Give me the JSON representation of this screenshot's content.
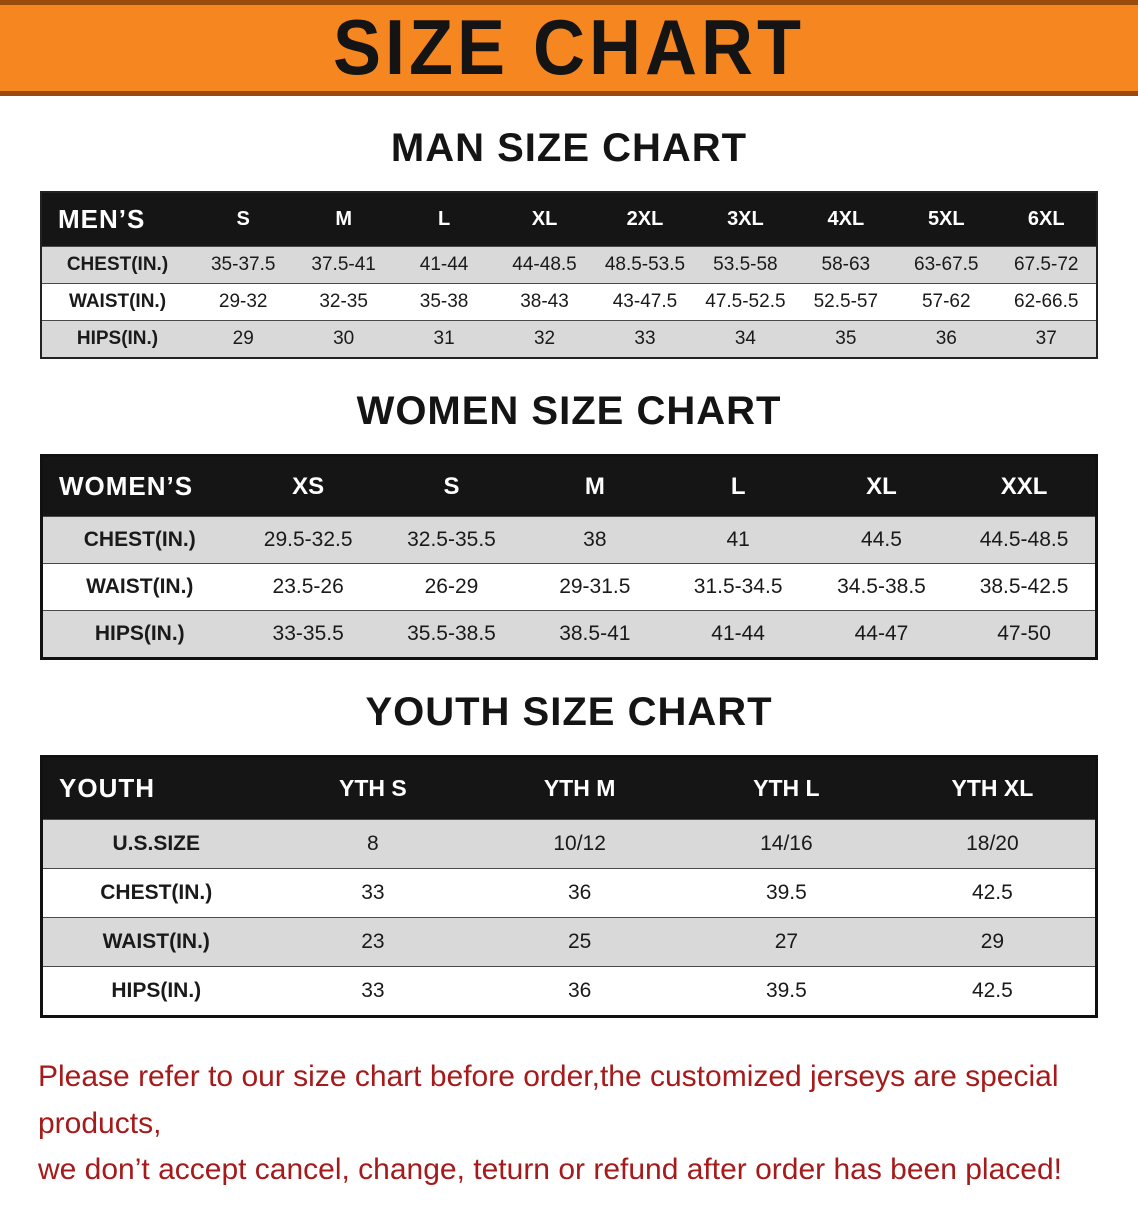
{
  "banner": {
    "title": "SIZE CHART"
  },
  "colors": {
    "banner_bg": "#f6861f",
    "banner_edge": "#9a4a0a",
    "header_bg": "#151515",
    "row_alt": "#d9d9d9",
    "disclaimer_color": "#a51a1a"
  },
  "sections": [
    {
      "heading": "MAN SIZE CHART",
      "table": {
        "header": [
          "MEN’S",
          "S",
          "M",
          "L",
          "XL",
          "2XL",
          "3XL",
          "4XL",
          "5XL",
          "6XL"
        ],
        "rows": [
          [
            "CHEST(IN.)",
            "35-37.5",
            "37.5-41",
            "41-44",
            "44-48.5",
            "48.5-53.5",
            "53.5-58",
            "58-63",
            "63-67.5",
            "67.5-72"
          ],
          [
            "WAIST(IN.)",
            "29-32",
            "32-35",
            "35-38",
            "38-43",
            "43-47.5",
            "47.5-52.5",
            "52.5-57",
            "57-62",
            "62-66.5"
          ],
          [
            "HIPS(IN.)",
            "29",
            "30",
            "31",
            "32",
            "33",
            "34",
            "35",
            "36",
            "37"
          ]
        ]
      }
    },
    {
      "heading": "WOMEN SIZE CHART",
      "table": {
        "header": [
          "WOMEN’S",
          "XS",
          "S",
          "M",
          "L",
          "XL",
          "XXL"
        ],
        "rows": [
          [
            "CHEST(IN.)",
            "29.5-32.5",
            "32.5-35.5",
            "38",
            "41",
            "44.5",
            "44.5-48.5"
          ],
          [
            "WAIST(IN.)",
            "23.5-26",
            "26-29",
            "29-31.5",
            "31.5-34.5",
            "34.5-38.5",
            "38.5-42.5"
          ],
          [
            "HIPS(IN.)",
            "33-35.5",
            "35.5-38.5",
            "38.5-41",
            "41-44",
            "44-47",
            "47-50"
          ]
        ]
      }
    },
    {
      "heading": "YOUTH SIZE CHART",
      "table": {
        "header": [
          "YOUTH",
          "YTH S",
          "YTH M",
          "YTH L",
          "YTH XL"
        ],
        "rows": [
          [
            "U.S.SIZE",
            "8",
            "10/12",
            "14/16",
            "18/20"
          ],
          [
            "CHEST(IN.)",
            "33",
            "36",
            "39.5",
            "42.5"
          ],
          [
            "WAIST(IN.)",
            "23",
            "25",
            "27",
            "29"
          ],
          [
            "HIPS(IN.)",
            "33",
            "36",
            "39.5",
            "42.5"
          ]
        ]
      }
    }
  ],
  "disclaimer": {
    "line1": "Please refer to our size chart before order,the customized jerseys are special products,",
    "line2": "we don’t accept cancel, change, teturn or refund after order has been placed!"
  }
}
